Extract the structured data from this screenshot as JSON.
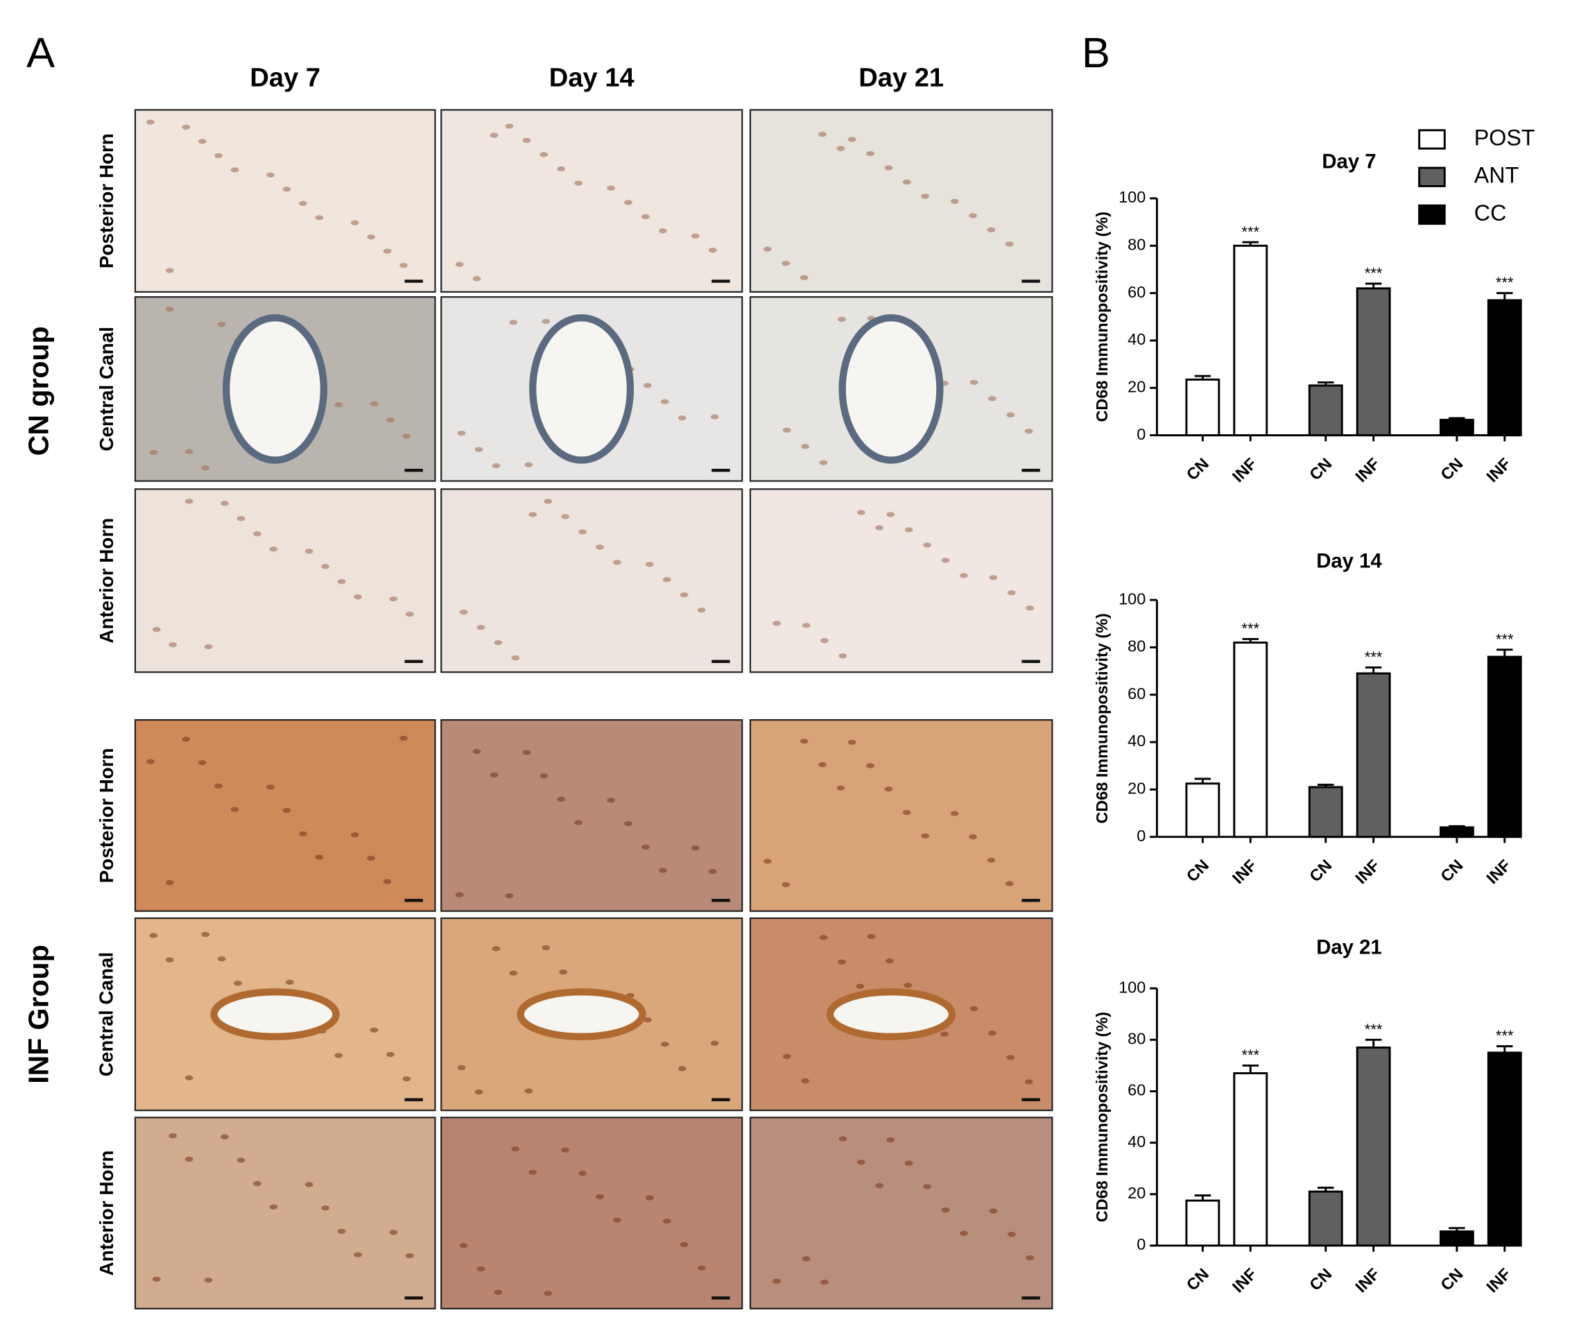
{
  "panel_a": {
    "label": "A",
    "columns": [
      "Day 7",
      "Day 14",
      "Day 21"
    ],
    "rows": [
      "Posterior Horn",
      "Central Canal",
      "Anterior Horn"
    ],
    "groups": [
      "CN group",
      "INF Group"
    ]
  },
  "panel_b": {
    "label": "B"
  },
  "chart_data": [
    {
      "type": "bar",
      "title": "Day 7",
      "ylabel": "CD68 Immunopositivity (%)",
      "categories": [
        "CN",
        "INF"
      ],
      "ylim": [
        0,
        100
      ],
      "yticks": [
        0,
        20,
        40,
        60,
        80,
        100
      ],
      "series": [
        {
          "name": "POST",
          "color": "#ffffff",
          "values": [
            23.5,
            80
          ],
          "errors": [
            1.5,
            1.5
          ]
        },
        {
          "name": "ANT",
          "color": "#606060",
          "values": [
            21,
            62
          ],
          "errors": [
            1.3,
            2
          ]
        },
        {
          "name": "CC",
          "color": "#000000",
          "values": [
            6.5,
            57
          ],
          "errors": [
            0.7,
            3
          ]
        }
      ],
      "annotations": [
        {
          "text": "***",
          "series": 0,
          "index": 1
        },
        {
          "text": "***",
          "series": 1,
          "index": 1
        },
        {
          "text": "***",
          "series": 2,
          "index": 1
        }
      ]
    },
    {
      "type": "bar",
      "title": "Day 14",
      "ylabel": "CD68 Immunopositivity (%)",
      "categories": [
        "CN",
        "INF"
      ],
      "ylim": [
        0,
        100
      ],
      "yticks": [
        0,
        20,
        40,
        60,
        80,
        100
      ],
      "series": [
        {
          "color": "#ffffff",
          "values": [
            22.5,
            82
          ],
          "errors": [
            2,
            1.5
          ]
        },
        {
          "color": "#606060",
          "values": [
            21,
            69
          ],
          "errors": [
            1,
            2.5
          ]
        },
        {
          "color": "#000000",
          "values": [
            4,
            76
          ],
          "errors": [
            0.5,
            3
          ]
        }
      ],
      "annotations": [
        {
          "text": "***",
          "series": 0,
          "index": 1
        },
        {
          "text": "***",
          "series": 1,
          "index": 1
        },
        {
          "text": "***",
          "series": 2,
          "index": 1
        }
      ]
    },
    {
      "type": "bar",
      "title": "Day 21",
      "ylabel": "CD68 Immunopositivity (%)",
      "categories": [
        "CN",
        "INF"
      ],
      "ylim": [
        0,
        100
      ],
      "yticks": [
        0,
        20,
        40,
        60,
        80,
        100
      ],
      "series": [
        {
          "color": "#ffffff",
          "values": [
            17.5,
            67
          ],
          "errors": [
            2,
            3
          ]
        },
        {
          "color": "#606060",
          "values": [
            21,
            77
          ],
          "errors": [
            1.5,
            3
          ]
        },
        {
          "color": "#000000",
          "values": [
            5.5,
            75
          ],
          "errors": [
            1.3,
            2.5
          ]
        }
      ],
      "annotations": [
        {
          "text": "***",
          "series": 0,
          "index": 1
        },
        {
          "text": "***",
          "series": 1,
          "index": 1
        },
        {
          "text": "***",
          "series": 2,
          "index": 1
        }
      ]
    }
  ]
}
